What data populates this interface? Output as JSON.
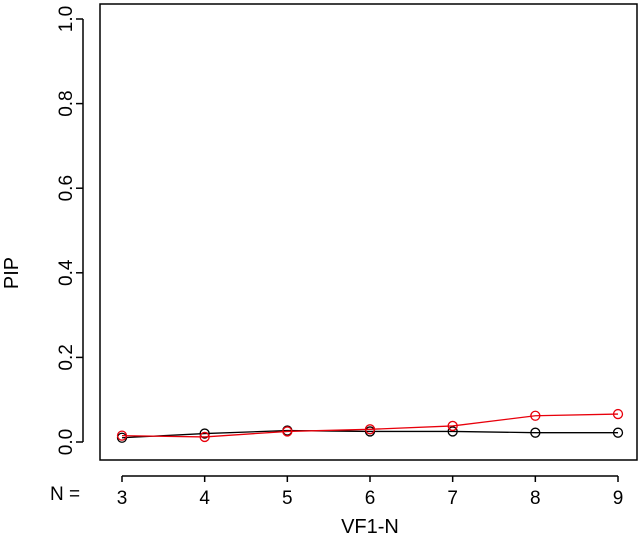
{
  "chart_data": {
    "type": "line",
    "title": "",
    "xlabel": "VF1-N",
    "ylabel": "PIP",
    "x_prefix_label": "N =",
    "x": [
      3,
      4,
      5,
      6,
      7,
      8,
      9
    ],
    "xlim": [
      3,
      9
    ],
    "ylim": [
      0.0,
      1.0
    ],
    "yticks": [
      "0.0",
      "0.2",
      "0.4",
      "0.6",
      "0.8",
      "1.0"
    ],
    "ytick_values": [
      0.0,
      0.2,
      0.4,
      0.6,
      0.8,
      1.0
    ],
    "grid": false,
    "legend": "none",
    "series": [
      {
        "color": "#000000",
        "marker": "open-circle",
        "values": [
          0.01,
          0.02,
          0.027,
          0.025,
          0.025,
          0.022,
          0.022
        ]
      },
      {
        "color": "#e8000b",
        "marker": "open-circle",
        "values": [
          0.015,
          0.012,
          0.025,
          0.03,
          0.038,
          0.062,
          0.066
        ]
      }
    ]
  }
}
